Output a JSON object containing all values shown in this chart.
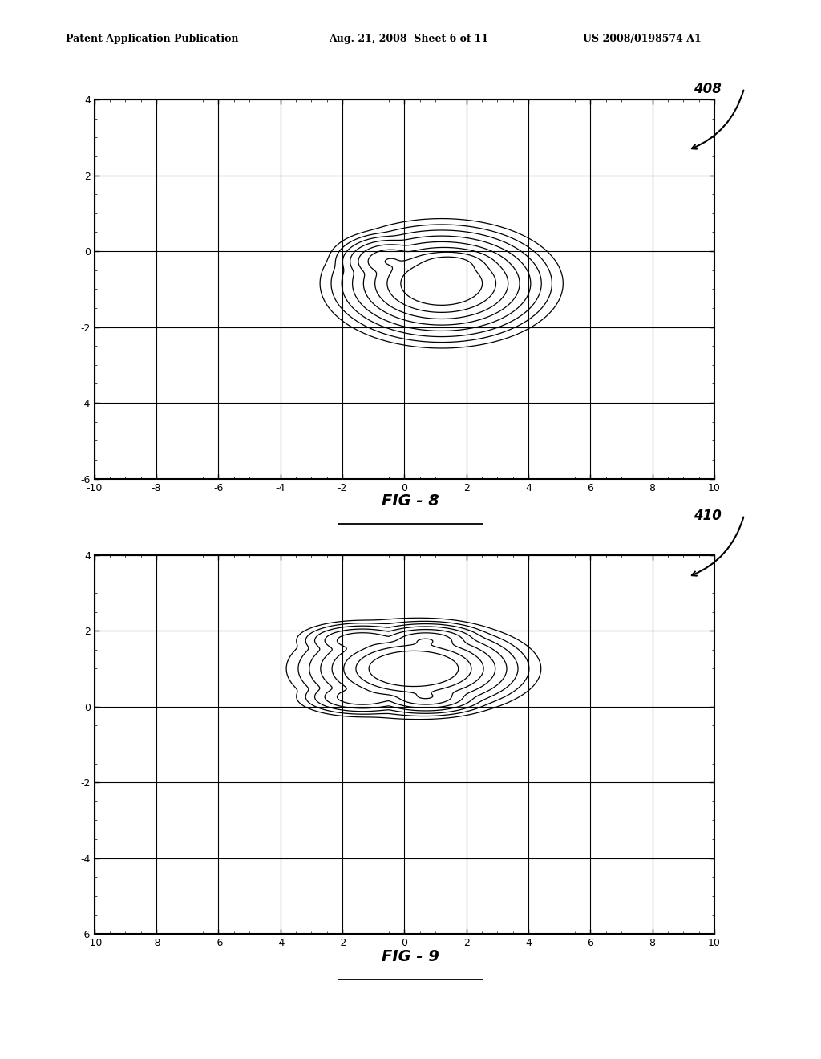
{
  "header_left": "Patent Application Publication",
  "header_center": "Aug. 21, 2008  Sheet 6 of 11",
  "header_right": "US 2008/0198574 A1",
  "fig8_label": "FIG - 8",
  "fig9_label": "FIG - 9",
  "label_408": "408",
  "label_410": "410",
  "xlim": [
    -10,
    10
  ],
  "ylim": [
    -6,
    4
  ],
  "xticks": [
    -10,
    -8,
    -6,
    -4,
    -2,
    0,
    2,
    4,
    6,
    8,
    10
  ],
  "yticks": [
    -6,
    -4,
    -2,
    0,
    2,
    4
  ],
  "background_color": "#ffffff",
  "line_color": "#000000"
}
